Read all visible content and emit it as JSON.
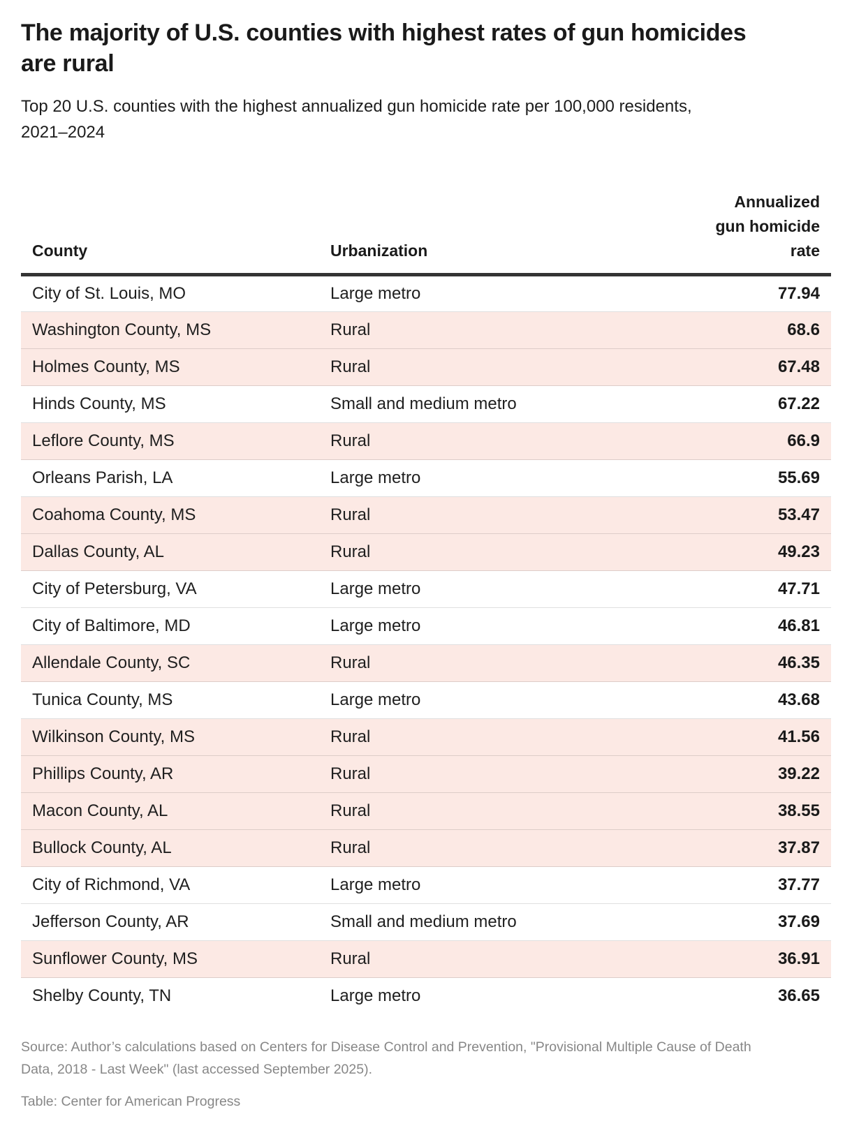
{
  "colors": {
    "highlight_row_bg": "#fce9e4",
    "text_primary": "#1a1a1a",
    "text_secondary": "#878787",
    "header_rule": "#333333",
    "row_border": "#dddddd",
    "page_bg": "#ffffff"
  },
  "header": {
    "title": "The majority of U.S. counties with highest rates of gun homicides are rural",
    "subtitle": "Top 20 U.S. counties with the highest annualized gun homicide rate per 100,000 residents, 2021–2024"
  },
  "table": {
    "columns": {
      "county_label": "County",
      "urbanization_label": "Urbanization",
      "rate_label": "Annualized\ngun homicide\nrate"
    },
    "highlight_value": "Rural",
    "rows": [
      {
        "county": "City of St. Louis, MO",
        "urbanization": "Large metro",
        "rate": "77.94"
      },
      {
        "county": "Washington County, MS",
        "urbanization": "Rural",
        "rate": "68.6"
      },
      {
        "county": "Holmes County, MS",
        "urbanization": "Rural",
        "rate": "67.48"
      },
      {
        "county": "Hinds County, MS",
        "urbanization": "Small and medium metro",
        "rate": "67.22"
      },
      {
        "county": "Leflore County, MS",
        "urbanization": "Rural",
        "rate": "66.9"
      },
      {
        "county": "Orleans Parish, LA",
        "urbanization": "Large metro",
        "rate": "55.69"
      },
      {
        "county": "Coahoma County, MS",
        "urbanization": "Rural",
        "rate": "53.47"
      },
      {
        "county": "Dallas County, AL",
        "urbanization": "Rural",
        "rate": "49.23"
      },
      {
        "county": "City of Petersburg, VA",
        "urbanization": "Large metro",
        "rate": "47.71"
      },
      {
        "county": "City of Baltimore, MD",
        "urbanization": "Large metro",
        "rate": "46.81"
      },
      {
        "county": "Allendale County, SC",
        "urbanization": "Rural",
        "rate": "46.35"
      },
      {
        "county": "Tunica County, MS",
        "urbanization": "Large metro",
        "rate": "43.68"
      },
      {
        "county": "Wilkinson County, MS",
        "urbanization": "Rural",
        "rate": "41.56"
      },
      {
        "county": "Phillips County, AR",
        "urbanization": "Rural",
        "rate": "39.22"
      },
      {
        "county": "Macon County, AL",
        "urbanization": "Rural",
        "rate": "38.55"
      },
      {
        "county": "Bullock County, AL",
        "urbanization": "Rural",
        "rate": "37.87"
      },
      {
        "county": "City of Richmond, VA",
        "urbanization": "Large metro",
        "rate": "37.77"
      },
      {
        "county": "Jefferson County, AR",
        "urbanization": "Small and medium metro",
        "rate": "37.69"
      },
      {
        "county": "Sunflower County, MS",
        "urbanization": "Rural",
        "rate": "36.91"
      },
      {
        "county": "Shelby County, TN",
        "urbanization": "Large metro",
        "rate": "36.65"
      }
    ]
  },
  "footer": {
    "source": "Source: Author’s calculations based on Centers for Disease Control and Prevention, \"Provisional Multiple Cause of Death Data, 2018 - Last Week\" (last accessed September 2025).",
    "credit": "Table: Center for American Progress"
  },
  "chart_data": {
    "type": "table",
    "title": "The majority of U.S. counties with highest rates of gun homicides are rural",
    "subtitle": "Top 20 U.S. counties with the highest annualized gun homicide rate per 100,000 residents, 2021–2024",
    "columns": [
      "County",
      "Urbanization",
      "Annualized gun homicide rate"
    ],
    "rows": [
      [
        "City of St. Louis, MO",
        "Large metro",
        77.94
      ],
      [
        "Washington County, MS",
        "Rural",
        68.6
      ],
      [
        "Holmes County, MS",
        "Rural",
        67.48
      ],
      [
        "Hinds County, MS",
        "Small and medium metro",
        67.22
      ],
      [
        "Leflore County, MS",
        "Rural",
        66.9
      ],
      [
        "Orleans Parish, LA",
        "Large metro",
        55.69
      ],
      [
        "Coahoma County, MS",
        "Rural",
        53.47
      ],
      [
        "Dallas County, AL",
        "Rural",
        49.23
      ],
      [
        "City of Petersburg, VA",
        "Large metro",
        47.71
      ],
      [
        "City of Baltimore, MD",
        "Large metro",
        46.81
      ],
      [
        "Allendale County, SC",
        "Rural",
        46.35
      ],
      [
        "Tunica County, MS",
        "Large metro",
        43.68
      ],
      [
        "Wilkinson County, MS",
        "Rural",
        41.56
      ],
      [
        "Phillips County, AR",
        "Rural",
        39.22
      ],
      [
        "Macon County, AL",
        "Rural",
        38.55
      ],
      [
        "Bullock County, AL",
        "Rural",
        37.87
      ],
      [
        "City of Richmond, VA",
        "Large metro",
        37.77
      ],
      [
        "Jefferson County, AR",
        "Small and medium metro",
        37.69
      ],
      [
        "Sunflower County, MS",
        "Rural",
        36.91
      ],
      [
        "Shelby County, TN",
        "Large metro",
        36.65
      ]
    ],
    "highlight": {
      "column": "Urbanization",
      "value": "Rural",
      "color": "#fce9e4"
    },
    "source": "Source: Author’s calculations based on Centers for Disease Control and Prevention, \"Provisional Multiple Cause of Death Data, 2018 - Last Week\" (last accessed September 2025).",
    "credit": "Table: Center for American Progress"
  }
}
